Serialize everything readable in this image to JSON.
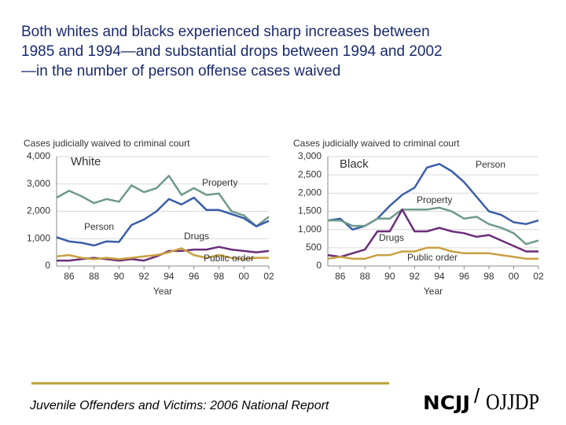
{
  "slide": {
    "title_lines": [
      "Both whites and blacks experienced sharp increases between",
      "1985 and 1994—and substantial drops between 1994 and 2002",
      "—in the number of person offense cases waived"
    ],
    "footer": "Juvenile Offenders and Victims: 2006 National Report",
    "logo_left": "NCJJ",
    "logo_sep": "/",
    "logo_right": "OJJDP"
  },
  "chart_data": [
    {
      "type": "line",
      "title": "White",
      "ylabel": "Cases judicially waived to criminal court",
      "xlabel": "Year",
      "categories": [
        null,
        "86",
        null,
        "88",
        null,
        "90",
        null,
        "92",
        null,
        "94",
        null,
        "96",
        null,
        "98",
        null,
        "00",
        null,
        "02"
      ],
      "ylim": [
        0,
        4000
      ],
      "yticks": [
        0,
        {
          "value": 1000,
          "label": "1,000"
        },
        {
          "value": 2000,
          "label": "2,000"
        },
        {
          "value": 3000,
          "label": "3,000"
        },
        {
          "value": 4000,
          "label": "4,000"
        }
      ],
      "grid": true,
      "series": [
        {
          "name": "Property",
          "color": "#6f9a8a",
          "values": [
            2500,
            2750,
            2550,
            2300,
            2450,
            2350,
            2950,
            2700,
            2850,
            3300,
            2600,
            2850,
            2600,
            2650,
            2000,
            1850,
            1450,
            1800
          ]
        },
        {
          "name": "Person",
          "color": "#3a5ea8",
          "values": [
            1050,
            900,
            850,
            750,
            900,
            880,
            1500,
            1700,
            2000,
            2450,
            2250,
            2500,
            2050,
            2050,
            1900,
            1750,
            1450,
            1650
          ]
        },
        {
          "name": "Drugs",
          "color": "#6b2e7a",
          "values": [
            200,
            200,
            250,
            300,
            250,
            200,
            250,
            200,
            350,
            550,
            550,
            600,
            600,
            700,
            600,
            550,
            500,
            550
          ]
        },
        {
          "name": "Public order",
          "color": "#c9a040",
          "values": [
            350,
            400,
            300,
            250,
            300,
            250,
            300,
            350,
            400,
            500,
            650,
            400,
            300,
            400,
            300,
            250,
            300,
            300
          ]
        }
      ]
    },
    {
      "type": "line",
      "title": "Black",
      "ylabel": "Cases judicially waived to criminal court",
      "xlabel": "Year",
      "categories": [
        null,
        "86",
        null,
        "88",
        null,
        "90",
        null,
        "92",
        null,
        "94",
        null,
        "96",
        null,
        "98",
        null,
        "00",
        null,
        "02"
      ],
      "ylim": [
        0,
        3000
      ],
      "yticks": [
        0,
        500,
        {
          "value": 1000,
          "label": "1,000"
        },
        {
          "value": 1500,
          "label": "1,500"
        },
        {
          "value": 2000,
          "label": "2,000"
        },
        {
          "value": 2500,
          "label": "2,500"
        },
        {
          "value": 3000,
          "label": "3,000"
        }
      ],
      "grid": true,
      "series": [
        {
          "name": "Person",
          "color": "#3a5ea8",
          "values": [
            1250,
            1300,
            1000,
            1100,
            1300,
            1650,
            1950,
            2150,
            2700,
            2800,
            2600,
            2300,
            1900,
            1500,
            1400,
            1200,
            1150,
            1250
          ]
        },
        {
          "name": "Property",
          "color": "#6f9a8a",
          "values": [
            1250,
            1250,
            1100,
            1100,
            1300,
            1300,
            1550,
            1550,
            1550,
            1600,
            1500,
            1300,
            1350,
            1150,
            1050,
            900,
            600,
            700
          ]
        },
        {
          "name": "Drugs",
          "color": "#6b2e7a",
          "values": [
            300,
            250,
            350,
            450,
            950,
            950,
            1550,
            950,
            950,
            1050,
            950,
            900,
            800,
            850,
            700,
            550,
            400,
            400
          ]
        },
        {
          "name": "Public order",
          "color": "#c9a040",
          "values": [
            200,
            250,
            200,
            200,
            300,
            300,
            400,
            400,
            500,
            500,
            400,
            350,
            350,
            350,
            300,
            250,
            200,
            200
          ]
        }
      ]
    }
  ]
}
